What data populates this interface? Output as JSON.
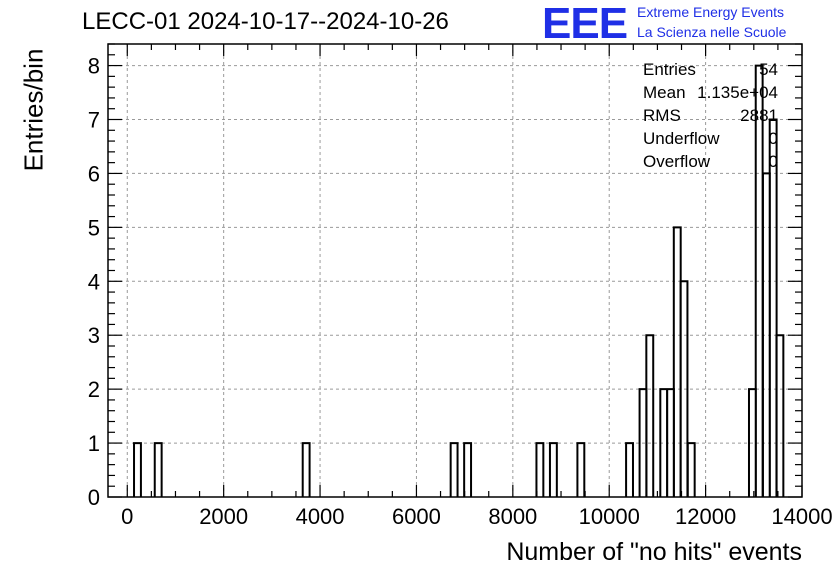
{
  "title": "LECC-01 2024-10-17--2024-10-26",
  "logo": {
    "mark": "EEE",
    "line1": "Extreme Energy Events",
    "line2": "La Scienza nelle Scuole",
    "color": "#1f2fe6"
  },
  "stats": {
    "entries_label": "Entries",
    "entries_value": "54",
    "mean_label": "Mean",
    "mean_value": "1.135e+04",
    "rms_label": "RMS",
    "rms_value": "2881",
    "underflow_label": "Underflow",
    "underflow_value": "0",
    "overflow_label": "Overflow",
    "overflow_value": "0"
  },
  "chart_data": {
    "type": "bar",
    "style": "step-histogram",
    "xlabel": "Number of \"no hits\" events",
    "ylabel": "Entries/bin",
    "xlim": [
      -400,
      14000
    ],
    "ylim": [
      0,
      8.4
    ],
    "bin_width": 143,
    "grid": true,
    "x_ticks": [
      0,
      2000,
      4000,
      6000,
      8000,
      10000,
      12000,
      14000
    ],
    "y_ticks": [
      0,
      1,
      2,
      3,
      4,
      5,
      6,
      7,
      8
    ],
    "bins": [
      {
        "x": 140,
        "value": 1
      },
      {
        "x": 570,
        "value": 1
      },
      {
        "x": 3640,
        "value": 1
      },
      {
        "x": 6710,
        "value": 1
      },
      {
        "x": 6990,
        "value": 1
      },
      {
        "x": 8490,
        "value": 1
      },
      {
        "x": 8770,
        "value": 1
      },
      {
        "x": 9340,
        "value": 1
      },
      {
        "x": 10350,
        "value": 1
      },
      {
        "x": 10630,
        "value": 2
      },
      {
        "x": 10770,
        "value": 3
      },
      {
        "x": 11060,
        "value": 2
      },
      {
        "x": 11200,
        "value": 2
      },
      {
        "x": 11340,
        "value": 5
      },
      {
        "x": 11480,
        "value": 4
      },
      {
        "x": 11630,
        "value": 1
      },
      {
        "x": 12900,
        "value": 2
      },
      {
        "x": 13040,
        "value": 8
      },
      {
        "x": 13190,
        "value": 6
      },
      {
        "x": 13330,
        "value": 7
      },
      {
        "x": 13470,
        "value": 3
      }
    ]
  }
}
